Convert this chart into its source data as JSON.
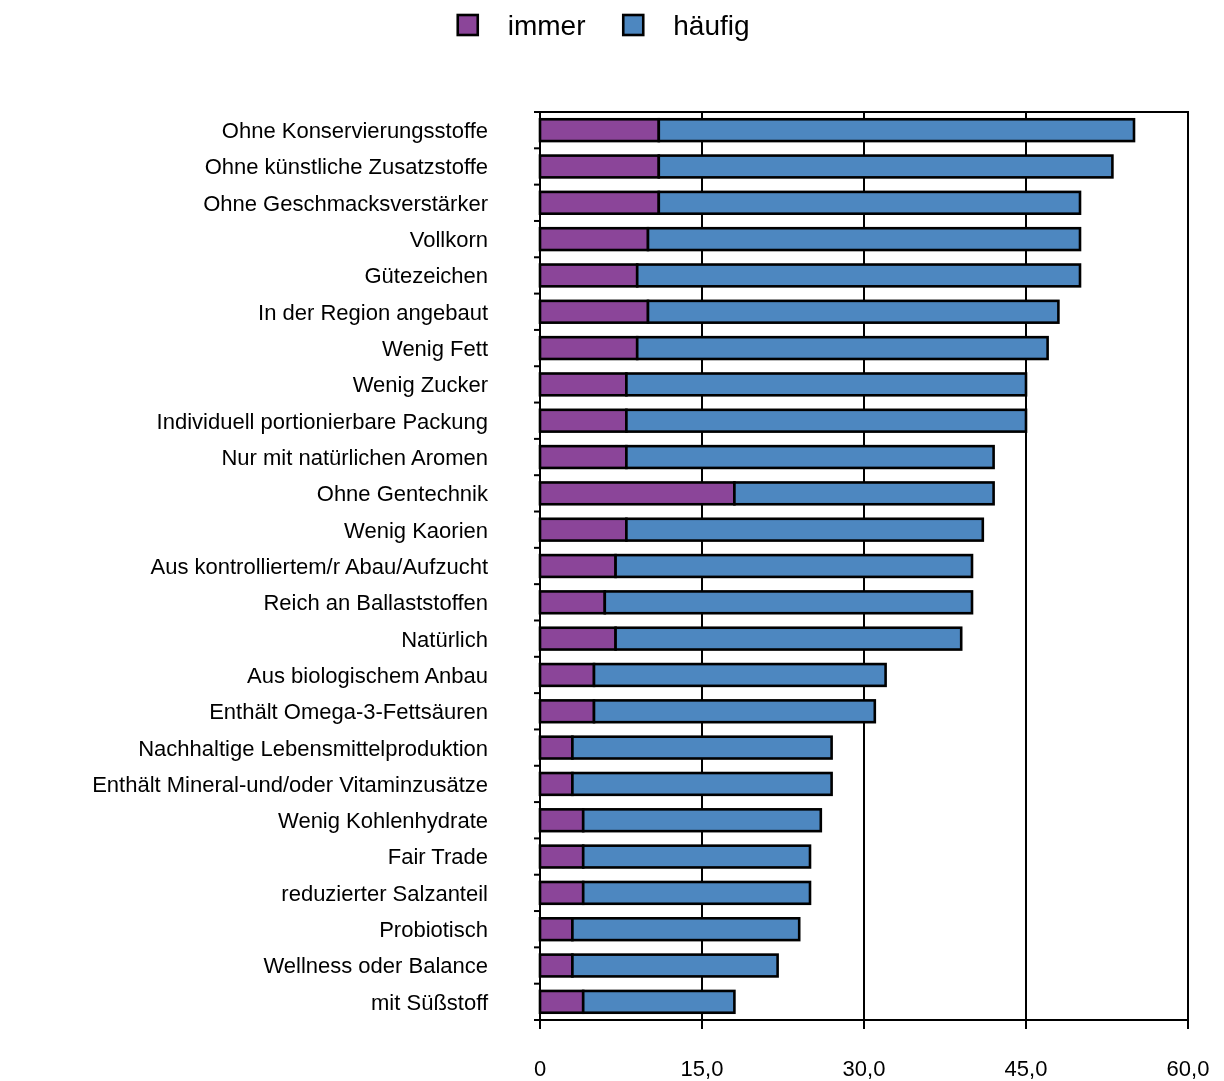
{
  "chart_data": {
    "type": "bar",
    "orientation": "horizontal",
    "stacked": true,
    "categories": [
      "Ohne Konservierungsstoffe",
      "Ohne künstliche Zusatzstoffe",
      "Ohne Geschmacksverstärker",
      "Vollkorn",
      "Gütezeichen",
      "In der Region angebaut",
      "Wenig Fett",
      "Wenig Zucker",
      "Individuell portionierbare Packung",
      "Nur mit natürlichen Aromen",
      "Ohne Gentechnik",
      "Wenig Kaorien",
      "Aus kontrolliertem/r Abau/Aufzucht",
      "Reich an Ballaststoffen",
      "Natürlich",
      "Aus biologischem Anbau",
      "Enthält Omega-3-Fettsäuren",
      "Nachhaltige Lebensmittelproduktion",
      "Enthält Mineral-und/oder Vitaminzusätze",
      "Wenig Kohlenhydrate",
      "Fair Trade",
      "reduzierter Salzanteil",
      "Probiotisch",
      "Wellness oder Balance",
      "mit Süßstoff"
    ],
    "series": [
      {
        "name": "immer",
        "color": "#8b4599",
        "values": [
          11,
          11,
          11,
          10,
          9,
          10,
          9,
          8,
          8,
          8,
          18,
          8,
          7,
          6,
          7,
          5,
          5,
          3,
          3,
          4,
          4,
          4,
          3,
          3,
          4
        ]
      },
      {
        "name": "häufig",
        "color": "#4d87c0",
        "values": [
          44,
          42,
          39,
          40,
          41,
          38,
          38,
          37,
          37,
          34,
          24,
          33,
          33,
          34,
          32,
          27,
          26,
          24,
          24,
          22,
          21,
          21,
          21,
          19,
          14
        ]
      }
    ],
    "xlim": [
      0,
      60
    ],
    "xticks": [
      0,
      {
        "value": 15,
        "label": "15,0"
      },
      {
        "value": 30,
        "label": "30,0"
      },
      {
        "value": 45,
        "label": "45,0"
      },
      {
        "value": 60,
        "label": "60,0"
      }
    ],
    "grid": "x",
    "legend": "top"
  }
}
